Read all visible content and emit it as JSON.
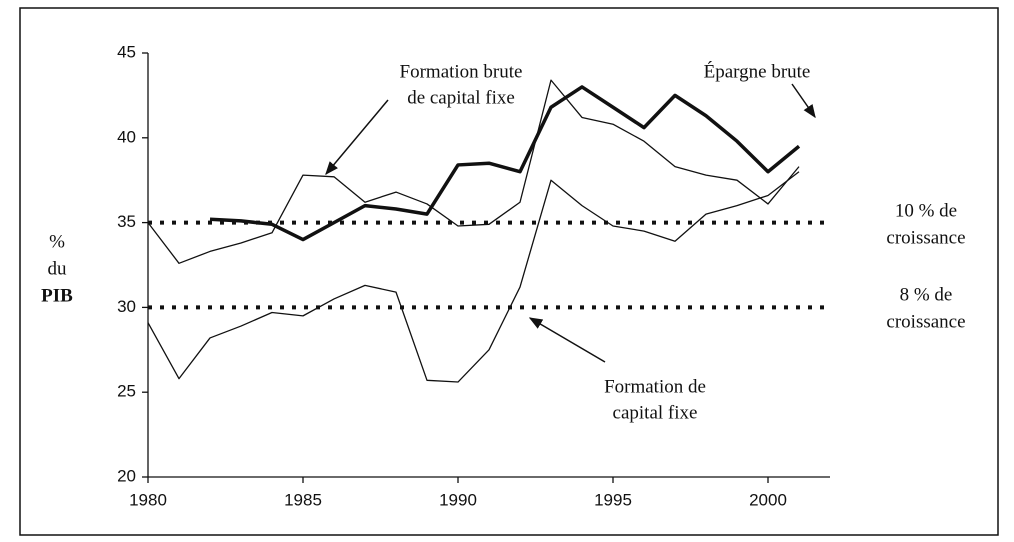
{
  "chart_data": {
    "type": "line",
    "x": [
      1980,
      1981,
      1982,
      1983,
      1984,
      1985,
      1986,
      1987,
      1988,
      1989,
      1990,
      1991,
      1992,
      1993,
      1994,
      1995,
      1996,
      1997,
      1998,
      1999,
      2000,
      2001
    ],
    "series": [
      {
        "label": [
          "Formation brute",
          "de capital fixe"
        ],
        "color": "#111",
        "width": 1.3,
        "values": [
          35.0,
          32.6,
          33.3,
          33.8,
          34.4,
          37.8,
          37.7,
          36.2,
          36.8,
          36.1,
          34.8,
          34.9,
          36.2,
          43.4,
          41.2,
          40.8,
          39.8,
          38.3,
          37.8,
          37.5,
          36.1,
          38.3
        ]
      },
      {
        "label": [
          "Épargne brute"
        ],
        "color": "#111",
        "width": 3.5,
        "values": [
          null,
          null,
          35.2,
          35.1,
          34.9,
          34.0,
          35.0,
          36.0,
          35.8,
          35.5,
          38.4,
          38.5,
          38.0,
          41.8,
          43.0,
          41.8,
          40.6,
          42.5,
          41.3,
          39.8,
          38.0,
          39.5
        ]
      },
      {
        "label": [
          "Formation de",
          "capital fixe"
        ],
        "color": "#111",
        "width": 1.3,
        "values": [
          29.1,
          25.8,
          28.2,
          28.9,
          29.7,
          29.5,
          30.5,
          31.3,
          30.9,
          25.7,
          25.6,
          27.5,
          31.2,
          37.5,
          36.0,
          34.8,
          34.5,
          33.9,
          35.5,
          36.0,
          36.6,
          38.0
        ]
      }
    ],
    "reference_lines": [
      {
        "value": 35,
        "label": [
          "10 % de",
          "croissance"
        ]
      },
      {
        "value": 30,
        "label": [
          "8 % de",
          "croissance"
        ]
      }
    ],
    "ylabel": [
      "%",
      "du",
      "PIB"
    ],
    "xlim": [
      1980,
      2002
    ],
    "xticks": [
      1980,
      1985,
      1990,
      1995,
      2000
    ],
    "ylim": [
      20,
      45
    ],
    "yticks": [
      20,
      25,
      30,
      35,
      40,
      45
    ]
  }
}
